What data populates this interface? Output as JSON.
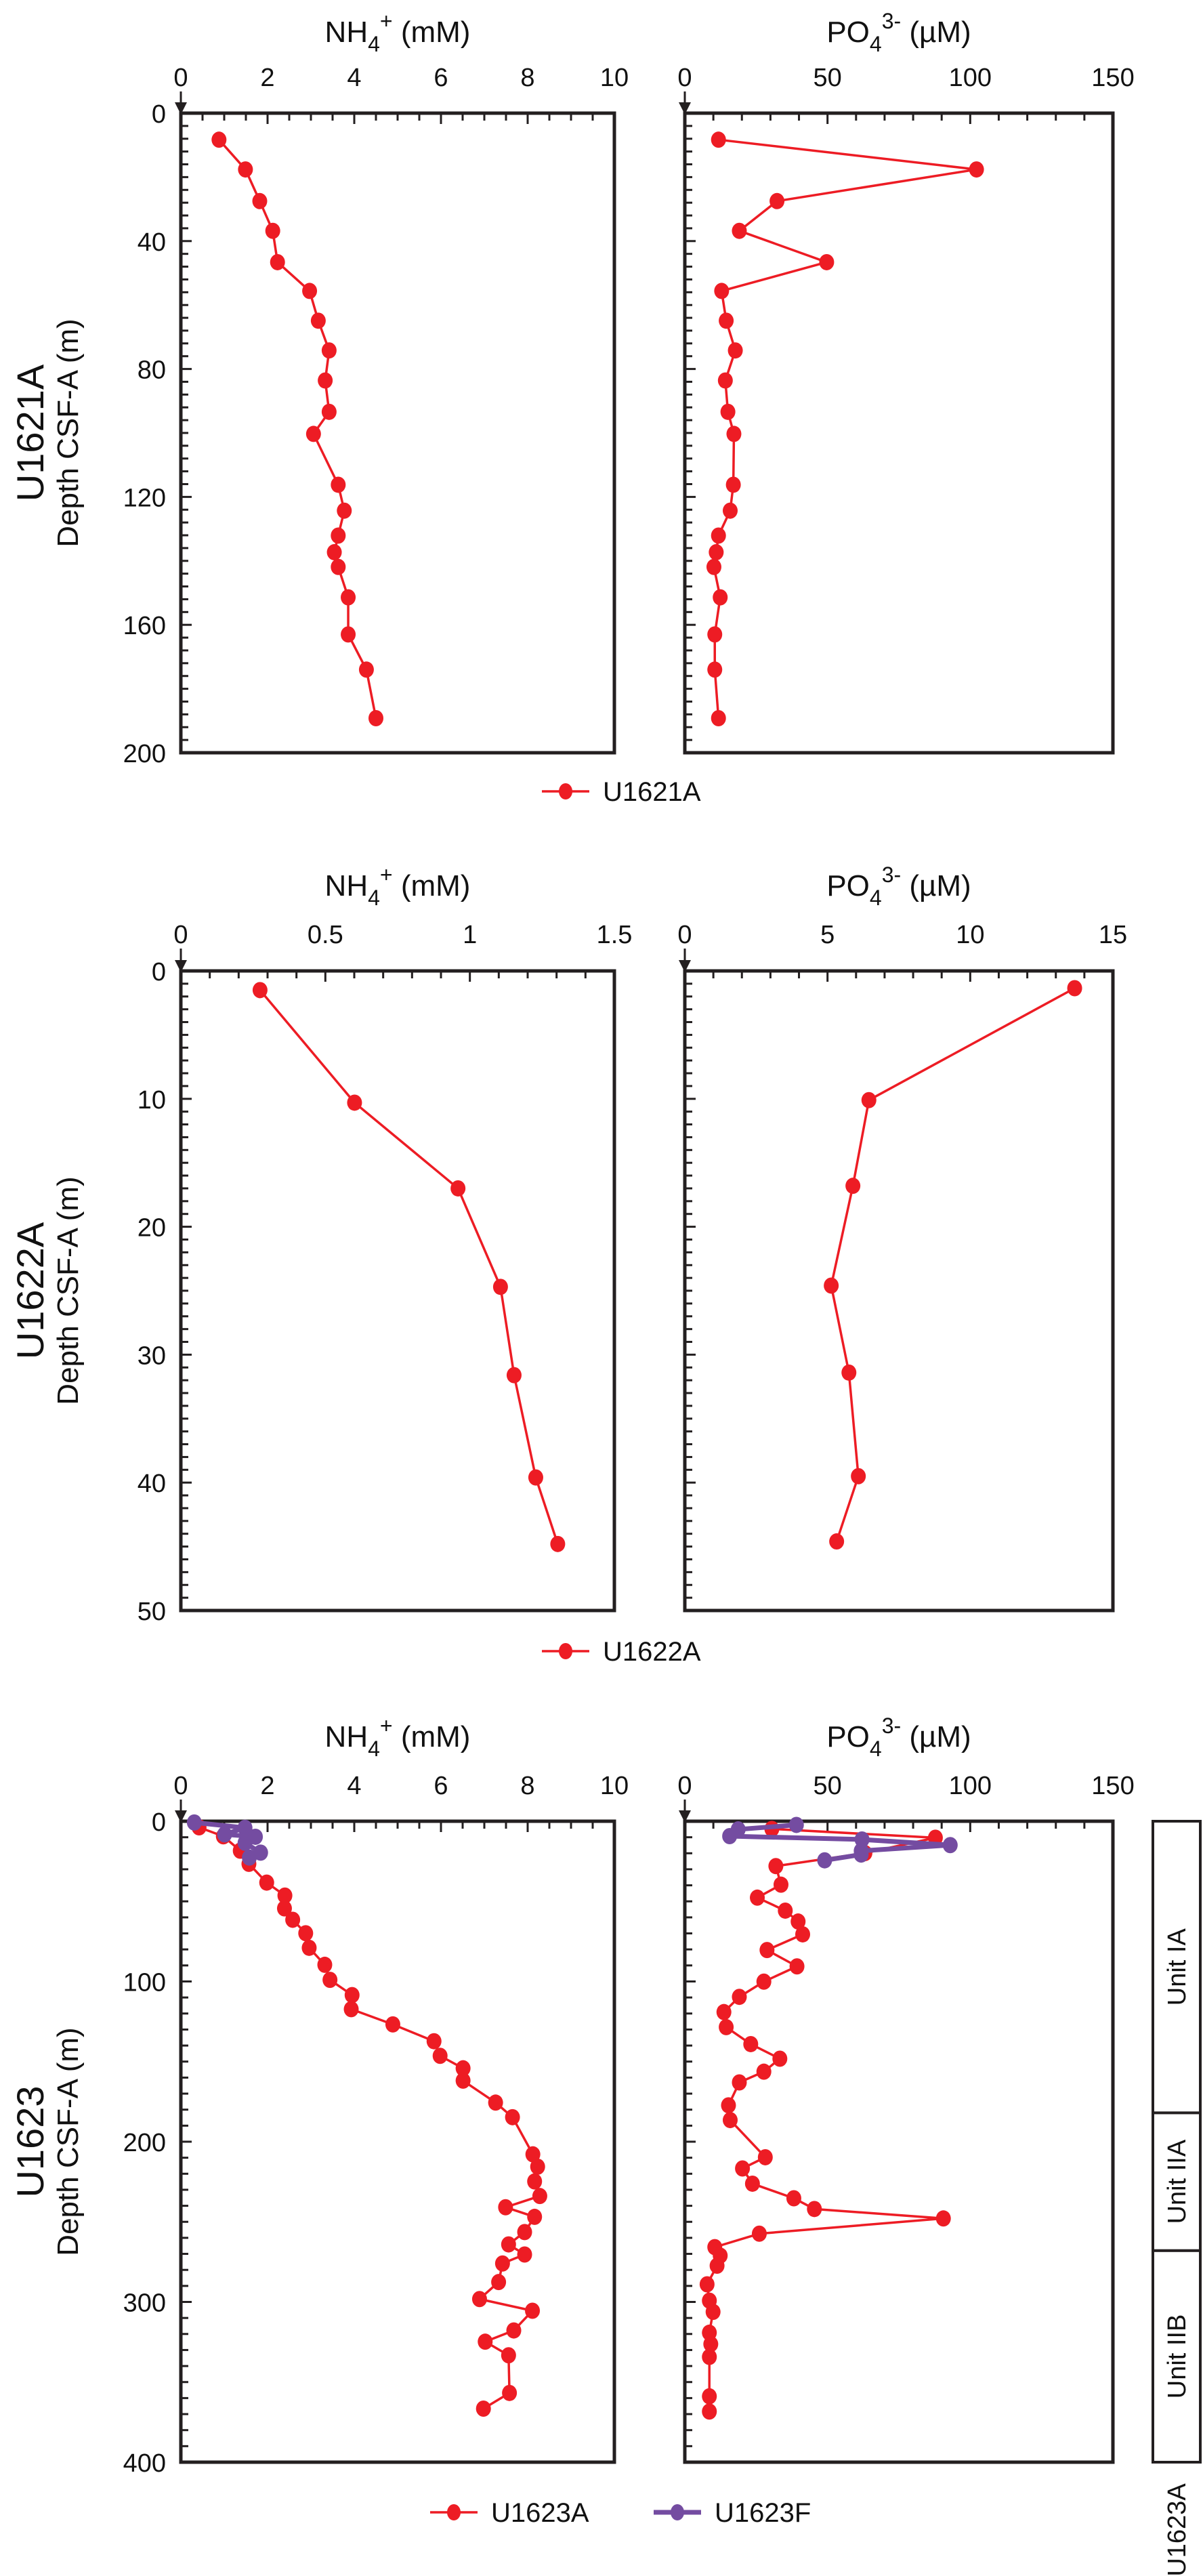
{
  "colors": {
    "U1621A": "#ED1C24",
    "U1622A": "#ED1C24",
    "U1623A": "#ED1C24",
    "U1623F": "#744CA1",
    "axis": "#231F20"
  },
  "chart_data": [
    {
      "type": "line",
      "site_label": "U1621A",
      "ylabel": "Depth CSF-A (m)",
      "ylim": [
        0,
        200
      ],
      "yticks": [
        0,
        40,
        80,
        120,
        160,
        200
      ],
      "y_minor_step": 4,
      "legend": {
        "placement": "bottom-center",
        "entries": [
          "U1621A"
        ]
      },
      "subplots": [
        {
          "title": "NH4+ (mM)",
          "title_main": "NH",
          "title_sub": "4",
          "title_sup": "+",
          "title_unit": " (mM)",
          "xlim": [
            0,
            10
          ],
          "xticks": [
            0,
            2,
            4,
            6,
            8,
            10
          ],
          "x_minor_step": 0.5,
          "series": [
            {
              "name": "U1621A",
              "color_key": "U1621A",
              "depth": [
                8.3,
                17.6,
                27.5,
                36.8,
                46.6,
                55.6,
                64.9,
                74.2,
                83.6,
                93.4,
                100.3,
                116.2,
                124.3,
                132.1,
                137.3,
                141.9,
                151.4,
                163.0,
                174.0,
                189.2
              ],
              "values": [
                0.88,
                1.49,
                1.82,
                2.12,
                2.23,
                2.97,
                3.17,
                3.42,
                3.33,
                3.42,
                3.06,
                3.63,
                3.77,
                3.63,
                3.54,
                3.63,
                3.86,
                3.86,
                4.28,
                4.5
              ]
            }
          ]
        },
        {
          "title": "PO43- (µM)",
          "title_main": "PO",
          "title_sub": "4",
          "title_sup": "3-",
          "title_unit": " (µM)",
          "xlim": [
            0,
            150
          ],
          "xticks": [
            0,
            50,
            100,
            150
          ],
          "x_minor_step": 10,
          "series": [
            {
              "name": "U1621A",
              "color_key": "U1621A",
              "depth": [
                8.3,
                17.6,
                27.5,
                36.8,
                46.6,
                55.6,
                64.9,
                74.2,
                83.6,
                93.4,
                100.3,
                116.2,
                124.3,
                132.1,
                137.3,
                141.9,
                151.4,
                163.0,
                174.0,
                189.2
              ],
              "values": [
                11.8,
                102.2,
                32.3,
                19.1,
                49.7,
                12.9,
                14.5,
                17.7,
                14.2,
                15.1,
                17.2,
                17.0,
                15.9,
                11.8,
                11.0,
                10.2,
                12.4,
                10.5,
                10.5,
                11.8
              ]
            }
          ]
        }
      ]
    },
    {
      "type": "line",
      "site_label": "U1622A",
      "ylabel": "Depth CSF-A (m)",
      "ylim": [
        0,
        50
      ],
      "yticks": [
        0,
        10,
        20,
        30,
        40,
        50
      ],
      "y_minor_step": 1,
      "legend": {
        "placement": "bottom-center",
        "entries": [
          "U1622A"
        ]
      },
      "subplots": [
        {
          "title": "NH4+ (mM)",
          "title_main": "NH",
          "title_sub": "4",
          "title_sup": "+",
          "title_unit": " (mM)",
          "xlim": [
            0,
            1.5
          ],
          "xticks": [
            0,
            0.5,
            1,
            1.5
          ],
          "x_minor_step": 0.1,
          "series": [
            {
              "name": "U1622A",
              "color_key": "U1622A",
              "depth": [
                1.5,
                10.3,
                17.0,
                24.7,
                31.6,
                39.6,
                44.8
              ],
              "values": [
                0.274,
                0.601,
                0.959,
                1.106,
                1.153,
                1.228,
                1.304
              ]
            }
          ]
        },
        {
          "title": "PO43- (µM)",
          "title_main": "PO",
          "title_sub": "4",
          "title_sup": "3-",
          "title_unit": " (µM)",
          "xlim": [
            0,
            15
          ],
          "xticks": [
            0,
            5,
            10,
            15
          ],
          "x_minor_step": 1,
          "series": [
            {
              "name": "U1622A",
              "color_key": "U1622A",
              "depth": [
                1.35,
                10.1,
                16.8,
                24.6,
                31.4,
                39.5,
                44.6
              ],
              "values": [
                13.66,
                6.45,
                5.89,
                5.13,
                5.75,
                6.08,
                5.32
              ]
            }
          ]
        }
      ]
    },
    {
      "type": "line",
      "site_label": "U1623",
      "ylabel": "Depth CSF-A (m)",
      "ylim": [
        0,
        400
      ],
      "yticks": [
        0,
        100,
        200,
        300,
        400
      ],
      "y_minor_step": 10,
      "legend": {
        "placement": "bottom-center",
        "entries": [
          "U1623A",
          "U1623F"
        ]
      },
      "lithology": {
        "hole_label": "U1623A",
        "units": [
          {
            "name": "Unit IA",
            "top": 0,
            "bottom": 182
          },
          {
            "name": "Unit IIA",
            "top": 182,
            "bottom": 268
          },
          {
            "name": "Unit IIB",
            "top": 268,
            "bottom": 400
          }
        ]
      },
      "subplots": [
        {
          "title": "NH4+ (mM)",
          "title_main": "NH",
          "title_sub": "4",
          "title_sup": "+",
          "title_unit": " (mM)",
          "xlim": [
            0,
            10
          ],
          "xticks": [
            0,
            2,
            4,
            6,
            8,
            10
          ],
          "x_minor_step": 0.5,
          "series": [
            {
              "name": "U1623A",
              "color_key": "U1623A",
              "depth": [
                3.8,
                9.4,
                18.4,
                26.6,
                38.3,
                46.4,
                54.4,
                61.5,
                69.9,
                79.0,
                89.6,
                99.0,
                108.5,
                117.3,
                126.8,
                137.3,
                146.4,
                154.2,
                161.9,
                175.6,
                184.7,
                207.9,
                215.6,
                224.8,
                233.9,
                240.9,
                246.9,
                256.4,
                264.1,
                270.4,
                276.0,
                287.6,
                298.2,
                305.5,
                317.8,
                324.8,
                333.3,
                356.8,
                366.6
              ],
              "values": [
                0.42,
                0.98,
                1.37,
                1.57,
                1.98,
                2.4,
                2.39,
                2.58,
                2.88,
                2.96,
                3.32,
                3.44,
                3.95,
                3.93,
                4.89,
                5.84,
                5.98,
                6.51,
                6.51,
                7.26,
                7.65,
                8.12,
                8.23,
                8.16,
                8.28,
                7.49,
                8.16,
                7.93,
                7.56,
                7.93,
                7.42,
                7.33,
                6.89,
                8.11,
                7.68,
                7.02,
                7.56,
                7.58,
                6.98
              ]
            },
            {
              "name": "U1623F",
              "color_key": "U1623F",
              "depth": [
                0.8,
                4.1,
                8.2,
                9.7,
                13.5,
                19.6,
                22.7
              ],
              "values": [
                0.31,
                1.48,
                1.01,
                1.72,
                1.48,
                1.84,
                1.58
              ]
            }
          ]
        },
        {
          "title": "PO43- (µM)",
          "title_main": "PO",
          "title_sub": "4",
          "title_sup": "3-",
          "title_unit": " (µM)",
          "xlim": [
            0,
            150
          ],
          "xticks": [
            0,
            50,
            100,
            150
          ],
          "x_minor_step": 10,
          "series": [
            {
              "name": "U1623A",
              "color_key": "U1623A",
              "depth": [
                4.8,
                10.3,
                19.9,
                28.0,
                39.6,
                47.7,
                55.8,
                62.6,
                70.6,
                80.4,
                90.6,
                100.1,
                109.6,
                119.1,
                128.5,
                139.1,
                148.2,
                156.3,
                163.0,
                177.3,
                186.5,
                209.7,
                216.7,
                226.2,
                235.3,
                242.0,
                247.9,
                257.4,
                265.8,
                271.1,
                277.4,
                289.0,
                299.2,
                306.2,
                319.2,
                326.3,
                334.3,
                358.9,
                368.4
              ],
              "values": [
                30.5,
                87.8,
                63.1,
                31.9,
                33.7,
                25.4,
                35.2,
                39.7,
                41.3,
                28.8,
                39.3,
                27.7,
                19.1,
                13.7,
                14.5,
                23.1,
                33.3,
                27.7,
                19.1,
                15.3,
                15.9,
                28.2,
                20.2,
                23.7,
                38.2,
                45.4,
                90.6,
                26.1,
                10.5,
                12.4,
                11.3,
                7.8,
                8.6,
                9.9,
                8.6,
                9.1,
                8.6,
                8.6,
                8.6
              ]
            },
            {
              "name": "U1623F",
              "color_key": "U1623F",
              "depth": [
                2.3,
                5.1,
                9.3,
                11.4,
                14.9,
                18.5,
                20.8,
                24.4
              ],
              "values": [
                39.1,
                18.7,
                15.7,
                62.1,
                93.0,
                61.8,
                61.8,
                49.0
              ]
            }
          ]
        }
      ]
    }
  ]
}
